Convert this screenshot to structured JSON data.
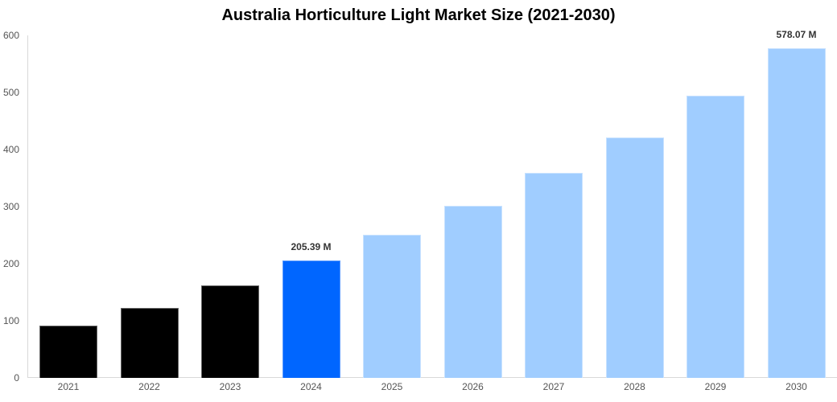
{
  "chart_data": {
    "type": "bar",
    "title": "Australia Horticulture Light Market Size (2021-2030)",
    "xlabel": "",
    "ylabel": "",
    "ylim": [
      0,
      600
    ],
    "yticks": [
      0,
      100,
      200,
      300,
      400,
      500,
      600
    ],
    "grid": false,
    "legend": null,
    "categories": [
      "2021",
      "2022",
      "2023",
      "2024",
      "2025",
      "2026",
      "2027",
      "2028",
      "2029",
      "2030"
    ],
    "values": [
      91.5,
      122.5,
      162.0,
      205.39,
      250.7,
      301.4,
      359.0,
      421.0,
      494.0,
      578.07
    ],
    "bar_types": [
      "historical",
      "historical",
      "historical",
      "current",
      "forecast",
      "forecast",
      "forecast",
      "forecast",
      "forecast",
      "forecast"
    ],
    "data_labels": {
      "2024": "205.39 M",
      "2030": "578.07 M"
    },
    "colors": {
      "historical": "#000000",
      "current": "#0066ff",
      "forecast": "#a0cdff"
    }
  },
  "title": "Australia Horticulture Light Market Size (2021-2030)",
  "yticks": [
    "0",
    "100",
    "200",
    "300",
    "400",
    "500",
    "600"
  ],
  "labels": {
    "b2024": "205.39 M",
    "b2030": "578.07 M"
  },
  "categories": [
    "2021",
    "2022",
    "2023",
    "2024",
    "2025",
    "2026",
    "2027",
    "2028",
    "2029",
    "2030"
  ]
}
